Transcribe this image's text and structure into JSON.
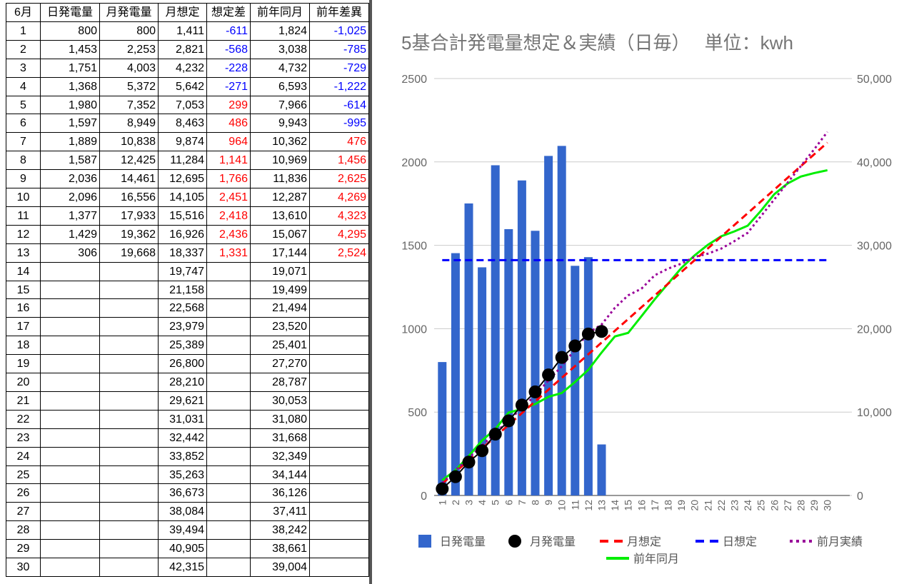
{
  "table": {
    "headers": [
      "6月",
      "日発電量",
      "月発電量",
      "月想定",
      "想定差",
      "前年同月",
      "前年差異"
    ],
    "rows": [
      [
        "1",
        "800",
        "800",
        "1,411",
        "-611",
        "1,824",
        "-1,025"
      ],
      [
        "2",
        "1,453",
        "2,253",
        "2,821",
        "-568",
        "3,038",
        "-785"
      ],
      [
        "3",
        "1,751",
        "4,003",
        "4,232",
        "-228",
        "4,732",
        "-729"
      ],
      [
        "4",
        "1,368",
        "5,372",
        "5,642",
        "-271",
        "6,593",
        "-1,222"
      ],
      [
        "5",
        "1,980",
        "7,352",
        "7,053",
        "299",
        "7,966",
        "-614"
      ],
      [
        "6",
        "1,597",
        "8,949",
        "8,463",
        "486",
        "9,943",
        "-995"
      ],
      [
        "7",
        "1,889",
        "10,838",
        "9,874",
        "964",
        "10,362",
        "476"
      ],
      [
        "8",
        "1,587",
        "12,425",
        "11,284",
        "1,141",
        "10,969",
        "1,456"
      ],
      [
        "9",
        "2,036",
        "14,461",
        "12,695",
        "1,766",
        "11,836",
        "2,625"
      ],
      [
        "10",
        "2,096",
        "16,556",
        "14,105",
        "2,451",
        "12,287",
        "4,269"
      ],
      [
        "11",
        "1,377",
        "17,933",
        "15,516",
        "2,418",
        "13,610",
        "4,323"
      ],
      [
        "12",
        "1,429",
        "19,362",
        "16,926",
        "2,436",
        "15,067",
        "4,295"
      ],
      [
        "13",
        "306",
        "19,668",
        "18,337",
        "1,331",
        "17,144",
        "2,524"
      ],
      [
        "14",
        null,
        null,
        "19,747",
        null,
        "19,071",
        null
      ],
      [
        "15",
        null,
        null,
        "21,158",
        null,
        "19,499",
        null
      ],
      [
        "16",
        null,
        null,
        "22,568",
        null,
        "21,494",
        null
      ],
      [
        "17",
        null,
        null,
        "23,979",
        null,
        "23,520",
        null
      ],
      [
        "18",
        null,
        null,
        "25,389",
        null,
        "25,401",
        null
      ],
      [
        "19",
        null,
        null,
        "26,800",
        null,
        "27,270",
        null
      ],
      [
        "20",
        null,
        null,
        "28,210",
        null,
        "28,787",
        null
      ],
      [
        "21",
        null,
        null,
        "29,621",
        null,
        "30,053",
        null
      ],
      [
        "22",
        null,
        null,
        "31,031",
        null,
        "31,080",
        null
      ],
      [
        "23",
        null,
        null,
        "32,442",
        null,
        "31,668",
        null
      ],
      [
        "24",
        null,
        null,
        "33,852",
        null,
        "32,349",
        null
      ],
      [
        "25",
        null,
        null,
        "35,263",
        null,
        "34,144",
        null
      ],
      [
        "26",
        null,
        null,
        "36,673",
        null,
        "36,126",
        null
      ],
      [
        "27",
        null,
        null,
        "38,084",
        null,
        "37,411",
        null
      ],
      [
        "28",
        null,
        null,
        "39,494",
        null,
        "38,242",
        null
      ],
      [
        "29",
        null,
        null,
        "40,905",
        null,
        "38,661",
        null
      ],
      [
        "30",
        null,
        null,
        "42,315",
        null,
        "39,004",
        null
      ]
    ]
  },
  "chart_data": {
    "type": "combo",
    "title": "5基合計発電量想定＆実績（日毎）　 単位：kwh",
    "categories": [
      "1",
      "2",
      "3",
      "4",
      "5",
      "6",
      "7",
      "8",
      "9",
      "10",
      "11",
      "12",
      "13",
      "14",
      "15",
      "16",
      "17",
      "18",
      "19",
      "20",
      "21",
      "22",
      "23",
      "24",
      "25",
      "26",
      "27",
      "28",
      "29",
      "30"
    ],
    "ylim": [
      0,
      2500
    ],
    "yticks": [
      0,
      500,
      1000,
      1500,
      2000,
      2500
    ],
    "y2lim": [
      0,
      50000
    ],
    "y2ticks": [
      0,
      {
        "value": 10000,
        "label": "10,000"
      },
      {
        "value": 20000,
        "label": "20,000"
      },
      {
        "value": 30000,
        "label": "30,000"
      },
      {
        "value": 40000,
        "label": "40,000"
      },
      {
        "value": 50000,
        "label": "50,000"
      }
    ],
    "grid": true,
    "series": [
      {
        "name": "日発電量",
        "color": "#3366cc",
        "style": "bar",
        "values": [
          800,
          1453,
          1751,
          1368,
          1980,
          1597,
          1889,
          1587,
          2036,
          2096,
          1377,
          1429,
          306,
          null,
          null,
          null,
          null,
          null,
          null,
          null,
          null,
          null,
          null,
          null,
          null,
          null,
          null,
          null,
          null,
          null
        ]
      },
      {
        "name": "月発電量",
        "color": "#000000",
        "style": "dots",
        "axis": "y2",
        "values": [
          800,
          2253,
          4003,
          5372,
          7352,
          8949,
          10838,
          12425,
          14461,
          16556,
          17933,
          19362,
          19668,
          null,
          null,
          null,
          null,
          null,
          null,
          null,
          null,
          null,
          null,
          null,
          null,
          null,
          null,
          null,
          null,
          null
        ]
      },
      {
        "name": "月想定",
        "color": "#ff0000",
        "style": "dashed",
        "axis": "y2",
        "values": [
          1411,
          2821,
          4232,
          5642,
          7053,
          8463,
          9874,
          11284,
          12695,
          14105,
          15516,
          16926,
          18337,
          19747,
          21158,
          22568,
          23979,
          25389,
          26800,
          28210,
          29621,
          31031,
          32442,
          33852,
          35263,
          36673,
          38084,
          39494,
          40905,
          42315
        ]
      },
      {
        "name": "日想定",
        "color": "#0000ff",
        "style": "dashed",
        "values": [
          1411,
          1411,
          1411,
          1411,
          1411,
          1411,
          1411,
          1411,
          1411,
          1411,
          1411,
          1411,
          1411,
          1411,
          1411,
          1411,
          1411,
          1411,
          1411,
          1411,
          1411,
          1411,
          1411,
          1411,
          1411,
          1411,
          1411,
          1411,
          1411,
          1411
        ]
      },
      {
        "name": "前月実績",
        "color": "#990099",
        "style": "dotted",
        "axis": "y2",
        "values": [
          1500,
          3000,
          4500,
          6000,
          7500,
          9000,
          10500,
          12000,
          13800,
          15500,
          17500,
          19500,
          20500,
          22500,
          24000,
          24800,
          26400,
          27200,
          27800,
          28600,
          29000,
          29600,
          30500,
          31500,
          33500,
          35500,
          37500,
          39500,
          41500,
          43600
        ]
      },
      {
        "name": "前年同月",
        "color": "#00ee00",
        "style": "solid",
        "axis": "y2",
        "values": [
          1824,
          3038,
          4732,
          6593,
          7966,
          9943,
          10362,
          10969,
          11836,
          12287,
          13610,
          15067,
          17144,
          19071,
          19499,
          21494,
          23520,
          25401,
          27270,
          28787,
          30053,
          31080,
          31668,
          32349,
          34144,
          36126,
          37411,
          38242,
          38661,
          39004
        ]
      }
    ]
  }
}
